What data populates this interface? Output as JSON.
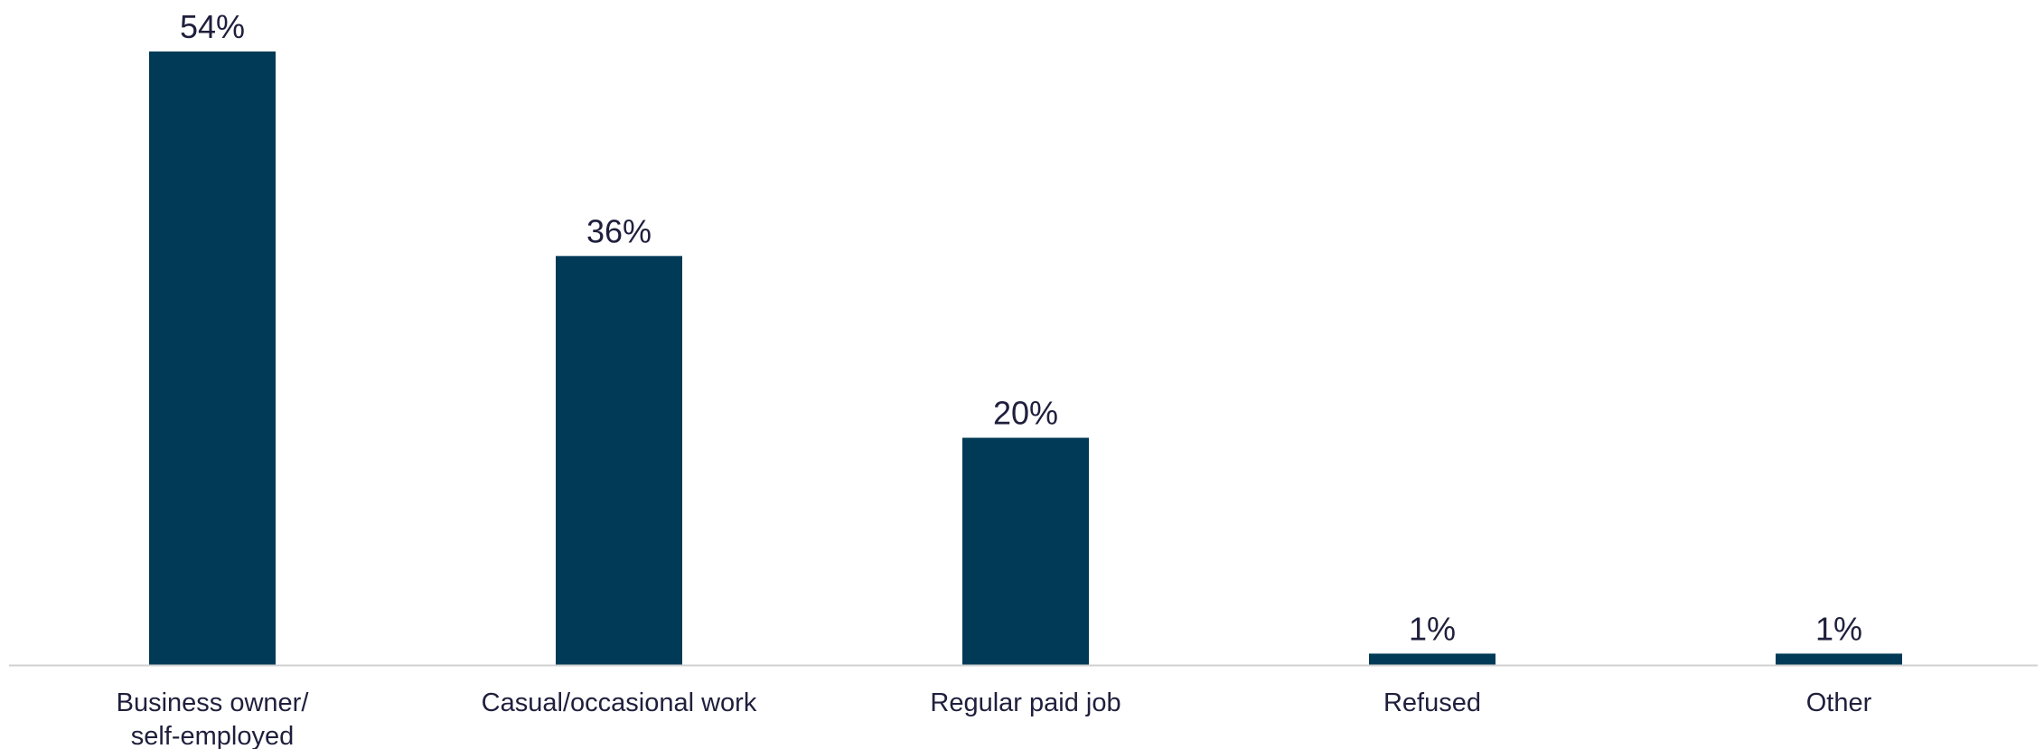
{
  "chart_data": {
    "type": "bar",
    "title": "",
    "xlabel": "",
    "ylabel": "",
    "categories": [
      [
        "Business owner/",
        "self-employed"
      ],
      [
        "Casual/occasional work"
      ],
      [
        "Regular paid job"
      ],
      [
        "Refused"
      ],
      [
        "Other"
      ]
    ],
    "values": [
      54,
      36,
      20,
      1,
      1
    ],
    "data_labels": [
      "54%",
      "36%",
      "20%",
      "1%",
      "1%"
    ],
    "ylim": [
      0,
      54
    ],
    "grid": false,
    "legend": "none",
    "colors": {
      "bar": "#003a57",
      "axis": "#d0d0d0",
      "text": "#1f1f3d"
    }
  }
}
